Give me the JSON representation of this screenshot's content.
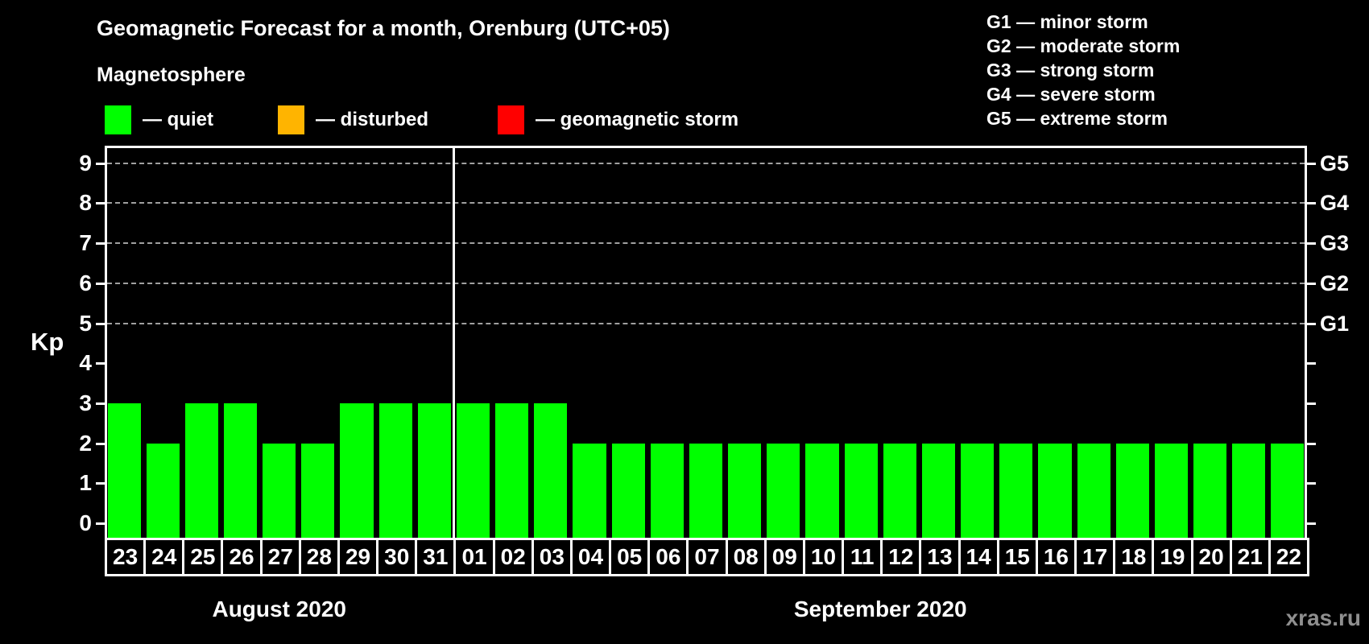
{
  "title": "Geomagnetic Forecast for a month, Orenburg (UTC+05)",
  "subtitle": "Magnetosphere",
  "legend": {
    "items": [
      {
        "name": "quiet",
        "label": "— quiet",
        "color": "#00ff00"
      },
      {
        "name": "disturbed",
        "label": "— disturbed",
        "color": "#ffb400"
      },
      {
        "name": "geomagnetic-storm",
        "label": "— geomagnetic storm",
        "color": "#ff0000"
      }
    ]
  },
  "g_scale_legend": [
    "G1 — minor storm",
    "G2 — moderate storm",
    "G3 — strong storm",
    "G4 — severe storm",
    "G5 — extreme storm"
  ],
  "watermark": "xras.ru",
  "colors": {
    "background": "#000000",
    "bar_quiet": "#00ff00",
    "axis": "#ffffff",
    "grid": "#a0a0a0",
    "text": "#ffffff",
    "watermark": "#8f8f8f"
  },
  "chart_data": {
    "type": "bar",
    "title": "Geomagnetic Forecast for a month, Orenburg (UTC+05)",
    "ylabel": "Kp",
    "ylim": [
      -0.35,
      9.4
    ],
    "yticks": [
      0,
      1,
      2,
      3,
      4,
      5,
      6,
      7,
      8,
      9
    ],
    "gridlines_kp": [
      5,
      6,
      7,
      8,
      9
    ],
    "grid": "dashed horizontal at Kp 5-9",
    "legend_position": "top",
    "right_axis": [
      {
        "label": "G1",
        "kp": 5
      },
      {
        "label": "G2",
        "kp": 6
      },
      {
        "label": "G3",
        "kp": 7
      },
      {
        "label": "G4",
        "kp": 8
      },
      {
        "label": "G5",
        "kp": 9
      }
    ],
    "categories": [
      "23",
      "24",
      "25",
      "26",
      "27",
      "28",
      "29",
      "30",
      "31",
      "01",
      "02",
      "03",
      "04",
      "05",
      "06",
      "07",
      "08",
      "09",
      "10",
      "11",
      "12",
      "13",
      "14",
      "15",
      "16",
      "17",
      "18",
      "19",
      "20",
      "21",
      "22"
    ],
    "values": [
      3,
      2,
      3,
      3,
      2,
      2,
      3,
      3,
      3,
      3,
      3,
      3,
      2,
      2,
      2,
      2,
      2,
      2,
      2,
      2,
      2,
      2,
      2,
      2,
      2,
      2,
      2,
      2,
      2,
      2,
      2
    ],
    "series_name": "quiet",
    "series_color": "#00ff00",
    "months": [
      {
        "label": "August 2020",
        "days": 9
      },
      {
        "label": "September 2020",
        "days": 22
      }
    ]
  }
}
